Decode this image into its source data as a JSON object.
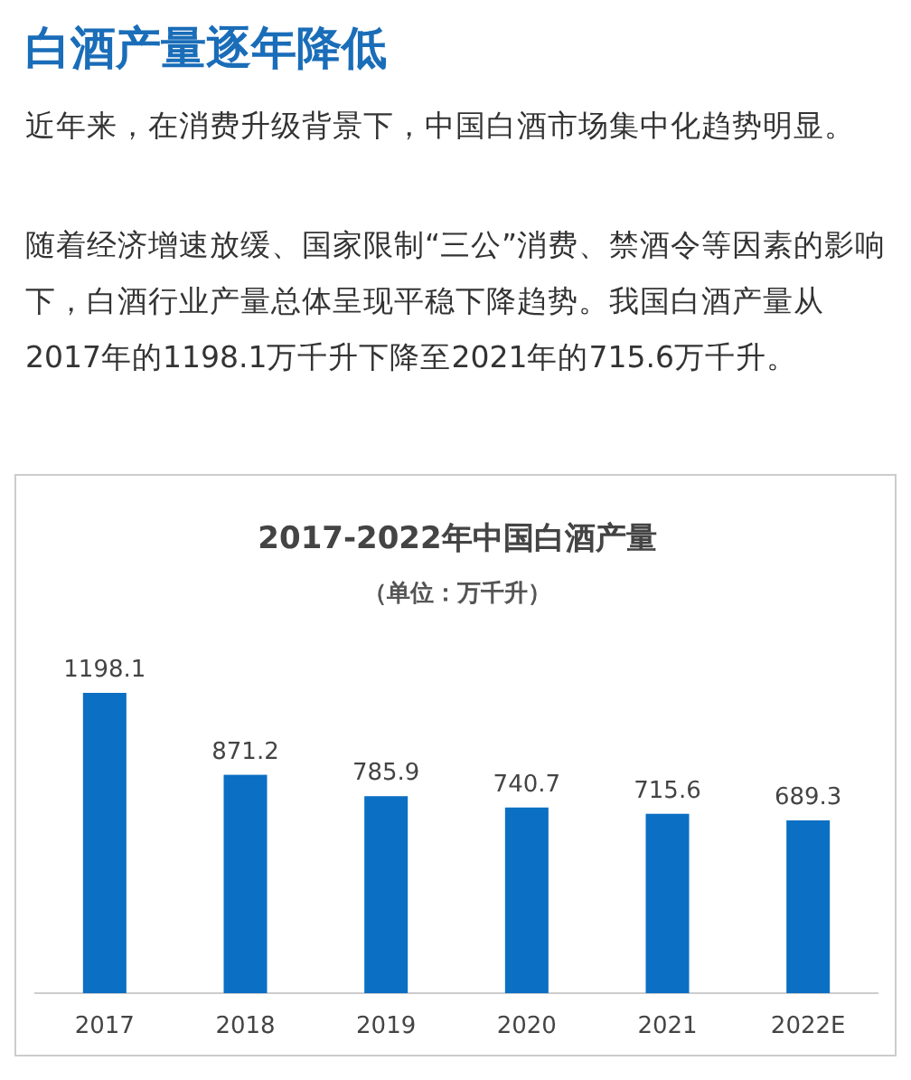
{
  "chart_data": {
    "type": "bar",
    "title": "2017-2022年中国白酒产量",
    "subtitle": "（单位：万千升）",
    "categories": [
      "2017",
      "2018",
      "2019",
      "2020",
      "2021",
      "2022E"
    ],
    "values": [
      1198.1,
      871.2,
      785.9,
      740.7,
      715.6,
      689.3
    ],
    "color": "#0b6fc3",
    "data_labels": true,
    "annotations": [
      "白酒产量逐年降低",
      "近年来，在消费升级背景下，中国白酒市场集中化趋势明显。",
      "随着经济增速放缓、国家限制“三公”消费、禁酒令等因素的影响下，白酒行业产量总体呈现平稳下降趋势。我国白酒产量从2017年的1198.1万千升下降至2021年的715.6万千升。"
    ]
  }
}
